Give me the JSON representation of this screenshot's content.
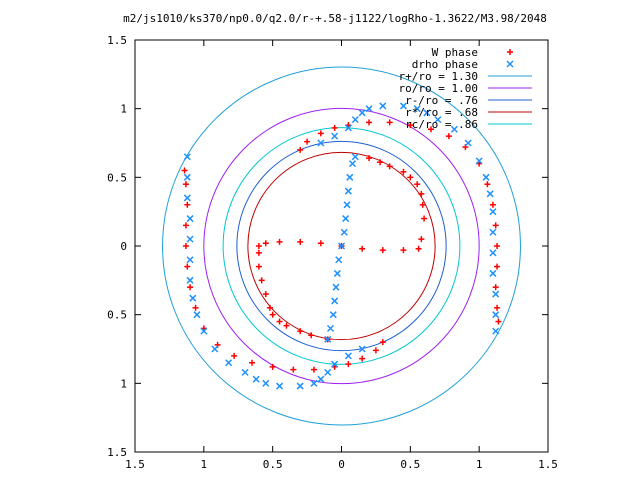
{
  "chart_data": {
    "type": "scatter",
    "title": "m2/js1010/ks370/np0.0/q2.0/r-+.58-j1122/logRho-1.3622/M3.98/2048",
    "xlabel": "",
    "ylabel": "",
    "xlim": [
      -1.5,
      1.5
    ],
    "ylim": [
      -1.5,
      1.5
    ],
    "grid": false,
    "legend_position": "top-right",
    "x_ticks": [
      {
        "value": -1.5,
        "label": "1.5"
      },
      {
        "value": -1.0,
        "label": "1"
      },
      {
        "value": -0.5,
        "label": "0.5"
      },
      {
        "value": 0.0,
        "label": "0"
      },
      {
        "value": 0.5,
        "label": "0.5"
      },
      {
        "value": 1.0,
        "label": "1"
      },
      {
        "value": 1.5,
        "label": "1.5"
      }
    ],
    "y_ticks": [
      {
        "value": 1.5,
        "label": "1.5"
      },
      {
        "value": 1.0,
        "label": "1"
      },
      {
        "value": 0.5,
        "label": "0.5"
      },
      {
        "value": 0.0,
        "label": "0"
      },
      {
        "value": -0.5,
        "label": "0.5"
      },
      {
        "value": -1.0,
        "label": "1"
      },
      {
        "value": -1.5,
        "label": "1.5"
      }
    ],
    "series": [
      {
        "name": "W phase",
        "marker": "plus",
        "color": "#ff0000",
        "points": [
          [
            -0.6,
            -0.05
          ],
          [
            -0.6,
            0.0
          ],
          [
            -0.55,
            0.02
          ],
          [
            -0.45,
            0.03
          ],
          [
            -0.3,
            0.03
          ],
          [
            -0.15,
            0.02
          ],
          [
            0.0,
            0.0
          ],
          [
            0.15,
            -0.02
          ],
          [
            0.3,
            -0.03
          ],
          [
            0.45,
            -0.03
          ],
          [
            0.56,
            -0.02
          ],
          [
            -0.6,
            -0.15
          ],
          [
            -0.58,
            -0.25
          ],
          [
            -0.55,
            -0.35
          ],
          [
            -0.52,
            -0.45
          ],
          [
            -0.5,
            -0.5
          ],
          [
            -0.45,
            -0.55
          ],
          [
            -0.4,
            -0.58
          ],
          [
            -0.3,
            -0.62
          ],
          [
            -0.22,
            -0.65
          ],
          [
            -0.1,
            -0.68
          ],
          [
            0.58,
            0.05
          ],
          [
            0.6,
            0.2
          ],
          [
            0.59,
            0.3
          ],
          [
            0.58,
            0.38
          ],
          [
            0.55,
            0.45
          ],
          [
            0.5,
            0.5
          ],
          [
            0.45,
            0.54
          ],
          [
            0.35,
            0.58
          ],
          [
            0.28,
            0.61
          ],
          [
            0.2,
            0.64
          ],
          [
            -0.3,
            0.7
          ],
          [
            -0.25,
            0.76
          ],
          [
            -0.15,
            0.82
          ],
          [
            -0.05,
            0.86
          ],
          [
            0.05,
            0.88
          ],
          [
            0.2,
            0.9
          ],
          [
            0.35,
            0.9
          ],
          [
            0.5,
            0.88
          ],
          [
            0.65,
            0.85
          ],
          [
            0.78,
            0.8
          ],
          [
            0.9,
            0.72
          ],
          [
            1.0,
            0.6
          ],
          [
            1.06,
            0.45
          ],
          [
            1.1,
            0.3
          ],
          [
            1.12,
            0.15
          ],
          [
            1.13,
            0.0
          ],
          [
            1.13,
            -0.15
          ],
          [
            1.12,
            -0.3
          ],
          [
            1.13,
            -0.45
          ],
          [
            1.14,
            -0.55
          ],
          [
            0.3,
            -0.7
          ],
          [
            0.25,
            -0.76
          ],
          [
            0.15,
            -0.82
          ],
          [
            0.05,
            -0.86
          ],
          [
            -0.05,
            -0.88
          ],
          [
            -0.2,
            -0.9
          ],
          [
            -0.35,
            -0.9
          ],
          [
            -0.5,
            -0.88
          ],
          [
            -0.65,
            -0.85
          ],
          [
            -0.78,
            -0.8
          ],
          [
            -0.9,
            -0.72
          ],
          [
            -1.0,
            -0.6
          ],
          [
            -1.06,
            -0.45
          ],
          [
            -1.1,
            -0.3
          ],
          [
            -1.12,
            -0.15
          ],
          [
            -1.13,
            0.0
          ],
          [
            -1.13,
            0.15
          ],
          [
            -1.12,
            0.3
          ],
          [
            -1.13,
            0.45
          ],
          [
            -1.14,
            0.55
          ]
        ]
      },
      {
        "name": "drho phase",
        "marker": "cross",
        "color": "#1e90ff",
        "points": [
          [
            0.0,
            0.0
          ],
          [
            0.02,
            0.1
          ],
          [
            0.03,
            0.2
          ],
          [
            0.04,
            0.3
          ],
          [
            0.05,
            0.4
          ],
          [
            0.06,
            0.5
          ],
          [
            0.08,
            0.6
          ],
          [
            0.1,
            0.65
          ],
          [
            -0.02,
            -0.1
          ],
          [
            -0.03,
            -0.2
          ],
          [
            -0.04,
            -0.3
          ],
          [
            -0.05,
            -0.4
          ],
          [
            -0.06,
            -0.5
          ],
          [
            -0.08,
            -0.6
          ],
          [
            -0.1,
            -0.68
          ],
          [
            -0.15,
            0.75
          ],
          [
            -0.05,
            0.8
          ],
          [
            0.05,
            0.86
          ],
          [
            0.1,
            0.92
          ],
          [
            0.15,
            0.97
          ],
          [
            0.2,
            1.0
          ],
          [
            0.3,
            1.02
          ],
          [
            0.45,
            1.02
          ],
          [
            0.55,
            1.0
          ],
          [
            0.62,
            0.97
          ],
          [
            0.7,
            0.92
          ],
          [
            0.82,
            0.85
          ],
          [
            0.92,
            0.75
          ],
          [
            1.0,
            0.62
          ],
          [
            1.05,
            0.5
          ],
          [
            1.08,
            0.38
          ],
          [
            1.1,
            0.25
          ],
          [
            1.1,
            0.1
          ],
          [
            1.1,
            -0.05
          ],
          [
            1.1,
            -0.2
          ],
          [
            1.12,
            -0.35
          ],
          [
            1.12,
            -0.5
          ],
          [
            1.12,
            -0.62
          ],
          [
            0.15,
            -0.75
          ],
          [
            0.05,
            -0.8
          ],
          [
            -0.05,
            -0.86
          ],
          [
            -0.1,
            -0.92
          ],
          [
            -0.15,
            -0.97
          ],
          [
            -0.2,
            -1.0
          ],
          [
            -0.3,
            -1.02
          ],
          [
            -0.45,
            -1.02
          ],
          [
            -0.55,
            -1.0
          ],
          [
            -0.62,
            -0.97
          ],
          [
            -0.7,
            -0.92
          ],
          [
            -0.82,
            -0.85
          ],
          [
            -0.92,
            -0.75
          ],
          [
            -1.0,
            -0.62
          ],
          [
            -1.05,
            -0.5
          ],
          [
            -1.08,
            -0.38
          ],
          [
            -1.1,
            -0.25
          ],
          [
            -1.1,
            -0.1
          ],
          [
            -1.1,
            0.05
          ],
          [
            -1.1,
            0.2
          ],
          [
            -1.12,
            0.35
          ],
          [
            -1.12,
            0.5
          ],
          [
            -1.12,
            0.65
          ]
        ]
      },
      {
        "name": "r+/ro = 1.30",
        "type": "circle",
        "radius": 1.3,
        "color": "#1f9fd8"
      },
      {
        "name": "ro/ro = 1.00",
        "type": "circle",
        "radius": 1.0,
        "color": "#a020f0"
      },
      {
        "name": "r-/ro = .76",
        "type": "circle",
        "radius": 0.76,
        "color": "#1e5fd0"
      },
      {
        "name": "r*/ro = .68",
        "type": "circle",
        "radius": 0.68,
        "color": "#c00000"
      },
      {
        "name": "rc/ro = .86",
        "type": "circle",
        "radius": 0.86,
        "color": "#00c8d0"
      }
    ]
  }
}
